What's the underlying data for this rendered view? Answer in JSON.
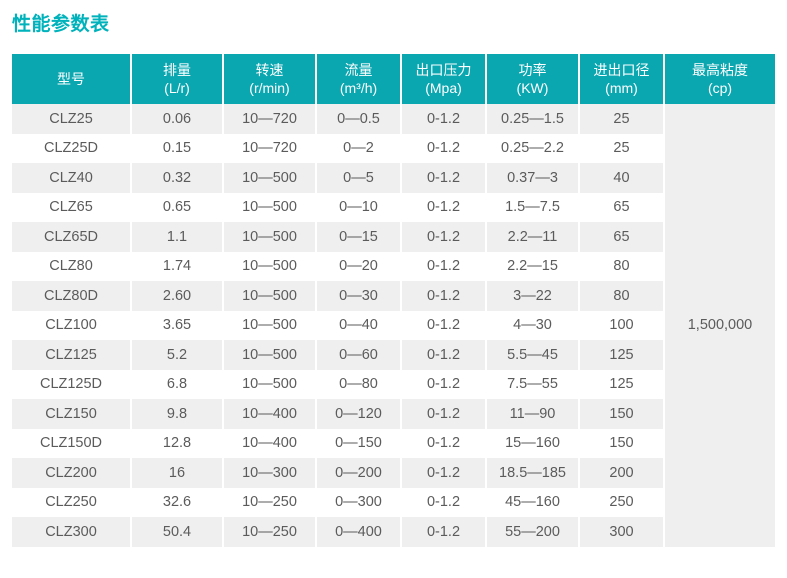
{
  "page": {
    "title": "性能参数表",
    "colors": {
      "title_accent": "#00b2bb",
      "header_bg": "#0aa7b1",
      "header_text": "#ffffff",
      "row_stripe": "#efefef",
      "body_text": "#5b5b5b"
    }
  },
  "table": {
    "columns": [
      {
        "label": "型号",
        "unit": ""
      },
      {
        "label": "排量",
        "unit": "(L/r)"
      },
      {
        "label": "转速",
        "unit": "(r/min)"
      },
      {
        "label": "流量",
        "unit": "(m³/h)"
      },
      {
        "label": "出口压力",
        "unit": "(Mpa)"
      },
      {
        "label": "功率",
        "unit": "(KW)"
      },
      {
        "label": "进出口径",
        "unit": "(mm)"
      },
      {
        "label": "最高粘度",
        "unit": "(cp)"
      }
    ],
    "rows": [
      [
        "CLZ25",
        "0.06",
        "10—720",
        "0—0.5",
        "0-1.2",
        "0.25—1.5",
        "25"
      ],
      [
        "CLZ25D",
        "0.15",
        "10—720",
        "0—2",
        "0-1.2",
        "0.25—2.2",
        "25"
      ],
      [
        "CLZ40",
        "0.32",
        "10—500",
        "0—5",
        "0-1.2",
        "0.37—3",
        "40"
      ],
      [
        "CLZ65",
        "0.65",
        "10—500",
        "0—10",
        "0-1.2",
        "1.5—7.5",
        "65"
      ],
      [
        "CLZ65D",
        "1.1",
        "10—500",
        "0—15",
        "0-1.2",
        "2.2—11",
        "65"
      ],
      [
        "CLZ80",
        "1.74",
        "10—500",
        "0—20",
        "0-1.2",
        "2.2—15",
        "80"
      ],
      [
        "CLZ80D",
        "2.60",
        "10—500",
        "0—30",
        "0-1.2",
        "3—22",
        "80"
      ],
      [
        "CLZ100",
        "3.65",
        "10—500",
        "0—40",
        "0-1.2",
        "4—30",
        "100"
      ],
      [
        "CLZ125",
        "5.2",
        "10—500",
        "0—60",
        "0-1.2",
        "5.5—45",
        "125"
      ],
      [
        "CLZ125D",
        "6.8",
        "10—500",
        "0—80",
        "0-1.2",
        "7.5—55",
        "125"
      ],
      [
        "CLZ150",
        "9.8",
        "10—400",
        "0—120",
        "0-1.2",
        "11—90",
        "150"
      ],
      [
        "CLZ150D",
        "12.8",
        "10—400",
        "0—150",
        "0-1.2",
        "15—160",
        "150"
      ],
      [
        "CLZ200",
        "16",
        "10—300",
        "0—200",
        "0-1.2",
        "18.5—185",
        "200"
      ],
      [
        "CLZ250",
        "32.6",
        "10—250",
        "0—300",
        "0-1.2",
        "45—160",
        "250"
      ],
      [
        "CLZ300",
        "50.4",
        "10—250",
        "0—400",
        "0-1.2",
        "55—200",
        "300"
      ]
    ],
    "max_viscosity": "1,500,000"
  }
}
